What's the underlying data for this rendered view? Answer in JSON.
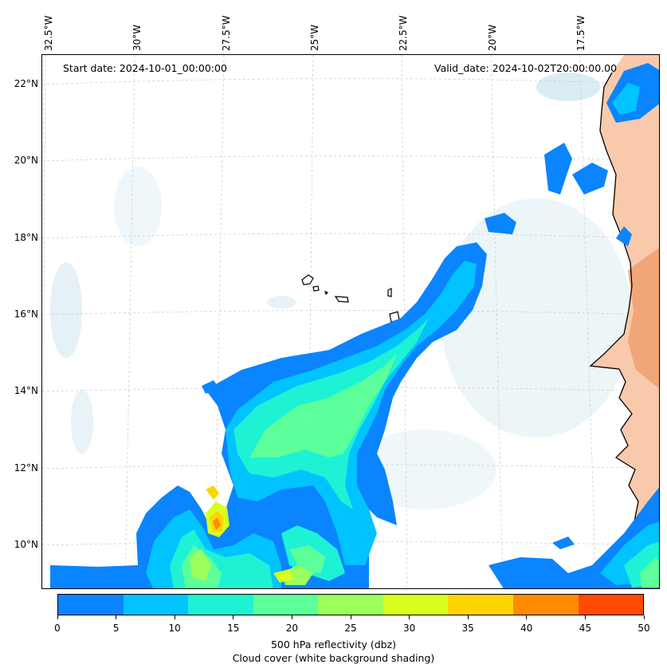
{
  "map": {
    "start_date": "Start date: 2024-10-01_00:00:00",
    "valid_date": "Valid_date: 2024-10-02T20:00:00.00",
    "lon_labels": [
      "32.5°W",
      "30°W",
      "27.5°W",
      "25°W",
      "22.5°W",
      "20°W",
      "17.5°W"
    ],
    "lat_labels": [
      "22°N",
      "20°N",
      "18°N",
      "16°N",
      "14°N",
      "12°N",
      "10°N"
    ],
    "land_color": "#f4a77a",
    "coastline_color": "#000000",
    "cloud_color": "#cfe6ef"
  },
  "colorbar": {
    "ticks": [
      "0",
      "5",
      "10",
      "15",
      "20",
      "25",
      "30",
      "35",
      "40",
      "45",
      "50"
    ],
    "colors": [
      "#0a84ff",
      "#00c3ff",
      "#1ef2d4",
      "#5cff9a",
      "#9cff5c",
      "#d9ff1e",
      "#ffd500",
      "#ff8c00",
      "#ff4a00"
    ],
    "label_line1": "500 hPa reflectivity (dbz)",
    "label_line2": "Cloud cover (white background shading)"
  }
}
